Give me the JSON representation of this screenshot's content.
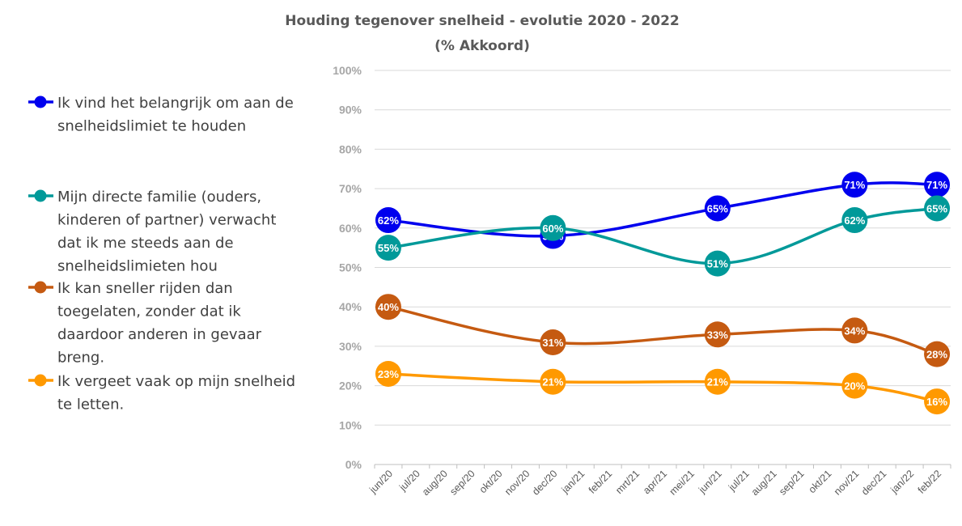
{
  "chart_data": {
    "type": "line",
    "title": "Houding tegenover snelheid - evolutie 2020 - 2022",
    "subtitle": "(% Akkoord)",
    "xlabel": "",
    "ylabel": "",
    "ylim": [
      0,
      100
    ],
    "y_ticks": [
      "0%",
      "10%",
      "20%",
      "30%",
      "40%",
      "50%",
      "60%",
      "70%",
      "80%",
      "90%",
      "100%"
    ],
    "categories": [
      "jun/20",
      "jul/20",
      "aug/20",
      "sep/20",
      "okt/20",
      "nov/20",
      "dec/20",
      "jan/21",
      "feb/21",
      "mrt/21",
      "apr/21",
      "mei/21",
      "jun/21",
      "jul/21",
      "aug/21",
      "sep/21",
      "okt/21",
      "nov/21",
      "dec/21",
      "jan/22",
      "feb/22"
    ],
    "grid": true,
    "smooth": true,
    "legend_position": "left",
    "series": [
      {
        "name": "Ik vind het belangrijk om aan de snelheidslimiet te houden",
        "legend_lines": [
          "Ik vind het belangrijk om aan de",
          "snelheidslimiet te houden"
        ],
        "color": "#0000ee",
        "points": [
          {
            "x": "jun/20",
            "y": 62
          },
          {
            "x": "dec/20",
            "y": 58
          },
          {
            "x": "jun/21",
            "y": 65
          },
          {
            "x": "nov/21",
            "y": 71
          },
          {
            "x": "feb/22",
            "y": 71
          }
        ],
        "labels": [
          "62%",
          "58%",
          "65%",
          "71%",
          "71%"
        ]
      },
      {
        "name": "Mijn directe familie (ouders, kinderen of partner) verwacht dat ik me steeds aan de snelheidslimieten hou",
        "legend_lines": [
          "Mijn directe familie (ouders,",
          "kinderen of partner) verwacht",
          "dat ik me steeds aan de",
          "snelheidslimieten hou"
        ],
        "color": "#009999",
        "points": [
          {
            "x": "jun/20",
            "y": 55
          },
          {
            "x": "dec/20",
            "y": 60
          },
          {
            "x": "jun/21",
            "y": 51
          },
          {
            "x": "nov/21",
            "y": 62
          },
          {
            "x": "feb/22",
            "y": 65
          }
        ],
        "labels": [
          "55%",
          "60%",
          "51%",
          "62%",
          "65%"
        ]
      },
      {
        "name": "Ik kan sneller rijden dan toegelaten, zonder dat ik daardoor anderen in gevaar breng.",
        "legend_lines": [
          "Ik kan sneller rijden dan",
          "toegelaten, zonder dat ik",
          "daardoor anderen in gevaar",
          "breng."
        ],
        "color": "#c55a11",
        "points": [
          {
            "x": "jun/20",
            "y": 40
          },
          {
            "x": "dec/20",
            "y": 31
          },
          {
            "x": "jun/21",
            "y": 33
          },
          {
            "x": "nov/21",
            "y": 34
          },
          {
            "x": "feb/22",
            "y": 28
          }
        ],
        "labels": [
          "40%",
          "31%",
          "33%",
          "34%",
          "28%"
        ]
      },
      {
        "name": "Ik vergeet vaak op mijn snelheid te letten.",
        "legend_lines": [
          "Ik vergeet vaak op mijn snelheid",
          "te letten."
        ],
        "color": "#ff9900",
        "points": [
          {
            "x": "jun/20",
            "y": 23
          },
          {
            "x": "dec/20",
            "y": 21
          },
          {
            "x": "jun/21",
            "y": 21
          },
          {
            "x": "nov/21",
            "y": 20
          },
          {
            "x": "feb/22",
            "y": 16
          }
        ],
        "labels": [
          "23%",
          "21%",
          "21%",
          "20%",
          "16%"
        ]
      }
    ]
  }
}
